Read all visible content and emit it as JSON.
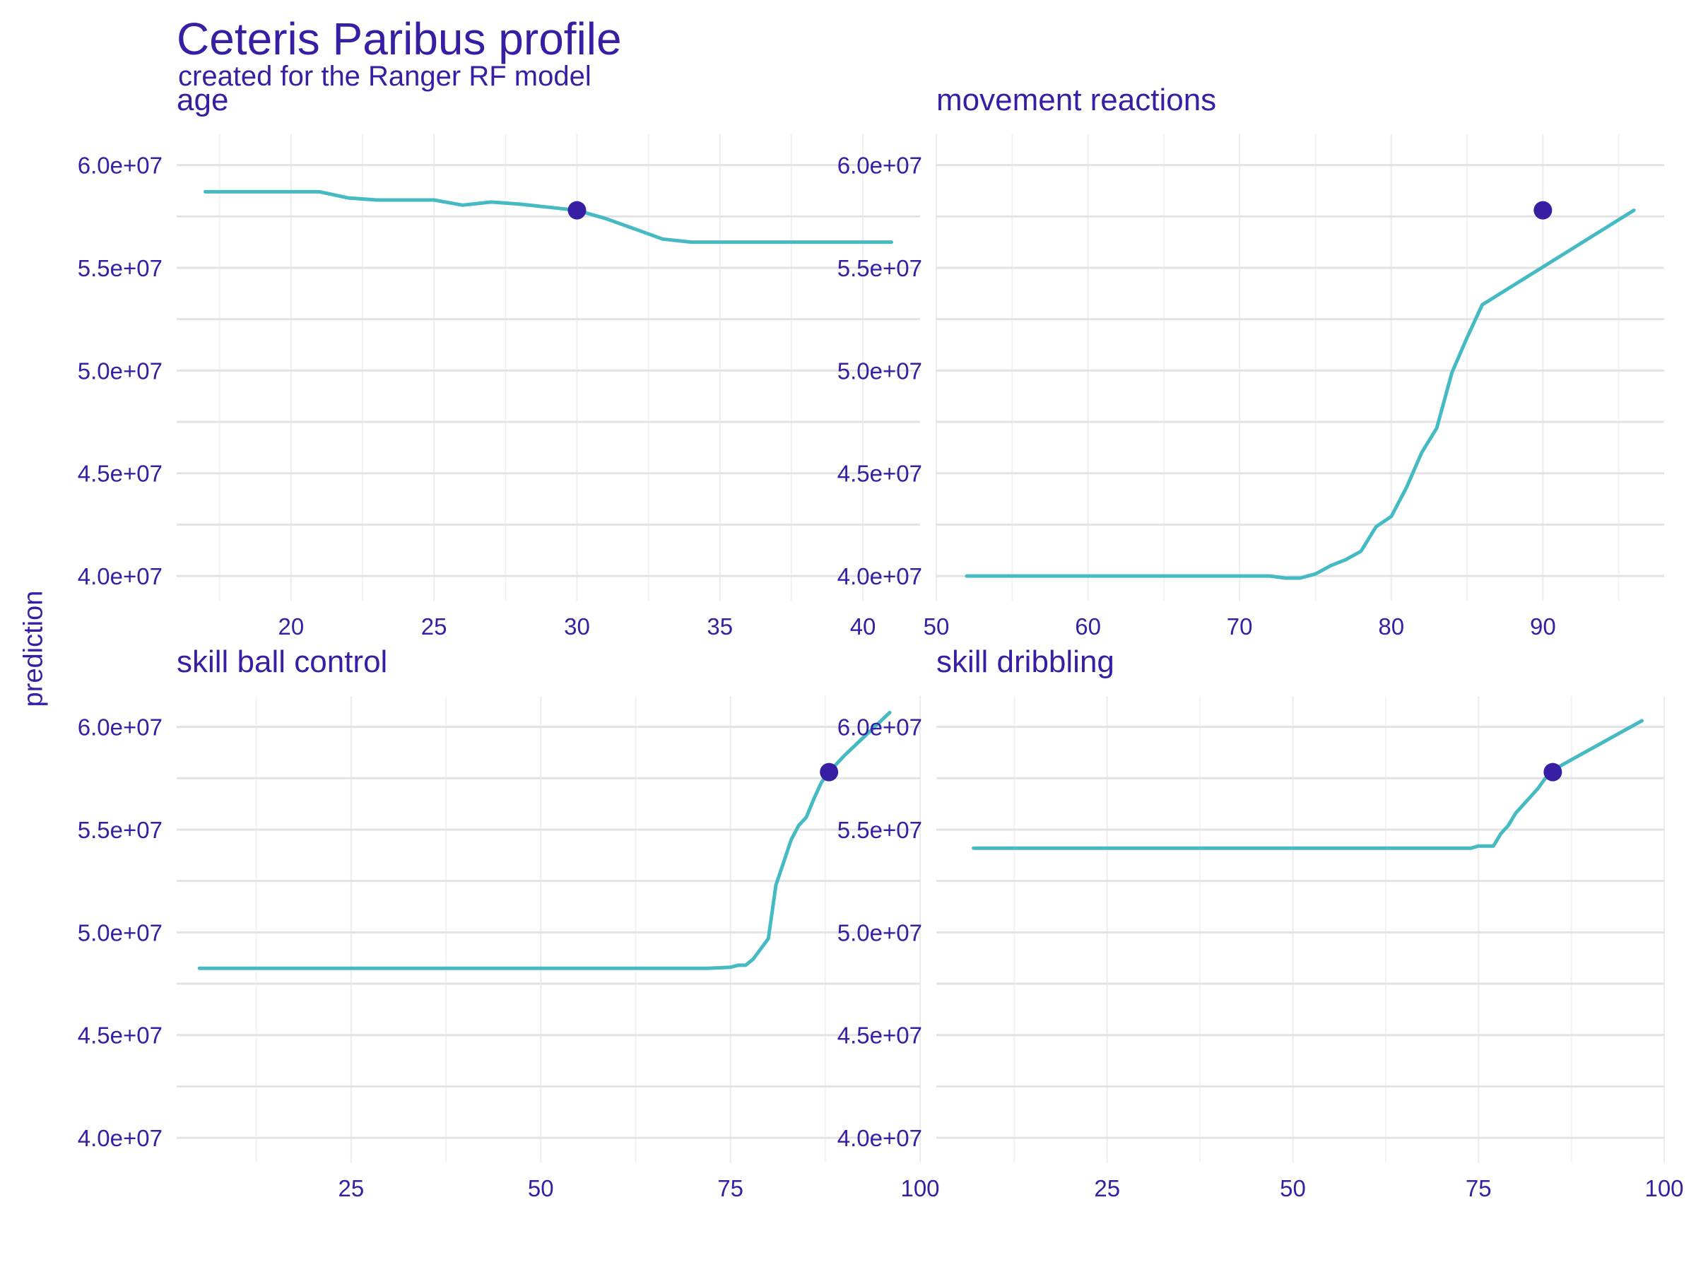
{
  "chart_data": {
    "type": "line",
    "title": "Ceteris Paribus profile",
    "subtitle": "created for the Ranger RF model",
    "ylabel": "prediction",
    "ylim": [
      38800000,
      61500000
    ],
    "yticks": [
      40000000,
      45000000,
      50000000,
      55000000,
      60000000
    ],
    "ytick_labels": [
      "4.0e+07",
      "4.5e+07",
      "5.0e+07",
      "5.5e+07",
      "6.0e+07"
    ],
    "grid": true,
    "line_color": "#46bac2",
    "point_color": "#371ea3",
    "text_color": "#371ea3",
    "panels": [
      {
        "name": "age",
        "xlim": [
          16,
          42
        ],
        "xticks": [
          20,
          25,
          30,
          35,
          40
        ],
        "xtick_labels": [
          "20",
          "25",
          "30",
          "35",
          "40"
        ],
        "x": [
          17,
          18,
          19,
          20,
          21,
          22,
          23,
          24,
          25,
          26,
          27,
          28,
          29,
          30,
          31,
          32,
          33,
          34,
          35,
          36,
          37,
          38,
          39,
          40,
          41
        ],
        "y": [
          58700000,
          58700000,
          58700000,
          58700000,
          58700000,
          58400000,
          58300000,
          58300000,
          58300000,
          58050000,
          58200000,
          58100000,
          57950000,
          57800000,
          57400000,
          56900000,
          56400000,
          56250000,
          56250000,
          56250000,
          56250000,
          56250000,
          56250000,
          56250000,
          56250000
        ],
        "observation": {
          "x": 30,
          "y": 57800000
        }
      },
      {
        "name": "movement  reactions",
        "xlim": [
          50,
          98
        ],
        "xticks": [
          50,
          60,
          70,
          80,
          90
        ],
        "xtick_labels": [
          "50",
          "60",
          "70",
          "80",
          "90"
        ],
        "x": [
          52,
          60,
          70,
          72,
          73,
          74,
          75,
          76,
          77,
          78,
          79,
          80,
          81,
          82,
          83,
          84,
          85,
          86,
          96
        ],
        "y": [
          40000000,
          40000000,
          40000000,
          40000000,
          39900000,
          39900000,
          40100000,
          40500000,
          40800000,
          41200000,
          42400000,
          42900000,
          44300000,
          46000000,
          47200000,
          49900000,
          51600000,
          53200000,
          57800000
        ],
        "observation": {
          "x": 90,
          "y": 57800000
        }
      },
      {
        "name": "skill  ball  control",
        "xlim": [
          2,
          100
        ],
        "xticks": [
          25,
          50,
          75,
          100
        ],
        "xtick_labels": [
          "25",
          "50",
          "75",
          "100"
        ],
        "x": [
          5,
          25,
          50,
          72,
          75,
          76,
          77,
          78,
          79,
          80,
          81,
          82,
          83,
          84,
          85,
          86,
          87,
          88,
          89,
          90,
          92,
          94,
          96
        ],
        "y": [
          48250000,
          48250000,
          48250000,
          48250000,
          48300000,
          48400000,
          48400000,
          48700000,
          49200000,
          49700000,
          52300000,
          53400000,
          54500000,
          55200000,
          55600000,
          56500000,
          57300000,
          57800000,
          58200000,
          58600000,
          59300000,
          60000000,
          60700000
        ],
        "observation": {
          "x": 88,
          "y": 57800000
        }
      },
      {
        "name": "skill  dribbling",
        "xlim": [
          2,
          100
        ],
        "xticks": [
          25,
          50,
          75,
          100
        ],
        "xtick_labels": [
          "25",
          "50",
          "75",
          "100"
        ],
        "x": [
          7,
          25,
          50,
          74,
          75,
          77,
          78,
          79,
          80,
          81,
          82,
          83,
          84,
          85,
          86,
          88,
          90,
          92,
          94,
          97
        ],
        "y": [
          54100000,
          54100000,
          54100000,
          54100000,
          54200000,
          54200000,
          54800000,
          55200000,
          55800000,
          56200000,
          56600000,
          57000000,
          57500000,
          57800000,
          58100000,
          58500000,
          58900000,
          59300000,
          59700000,
          60300000
        ],
        "observation": {
          "x": 85,
          "y": 57800000
        }
      }
    ]
  }
}
